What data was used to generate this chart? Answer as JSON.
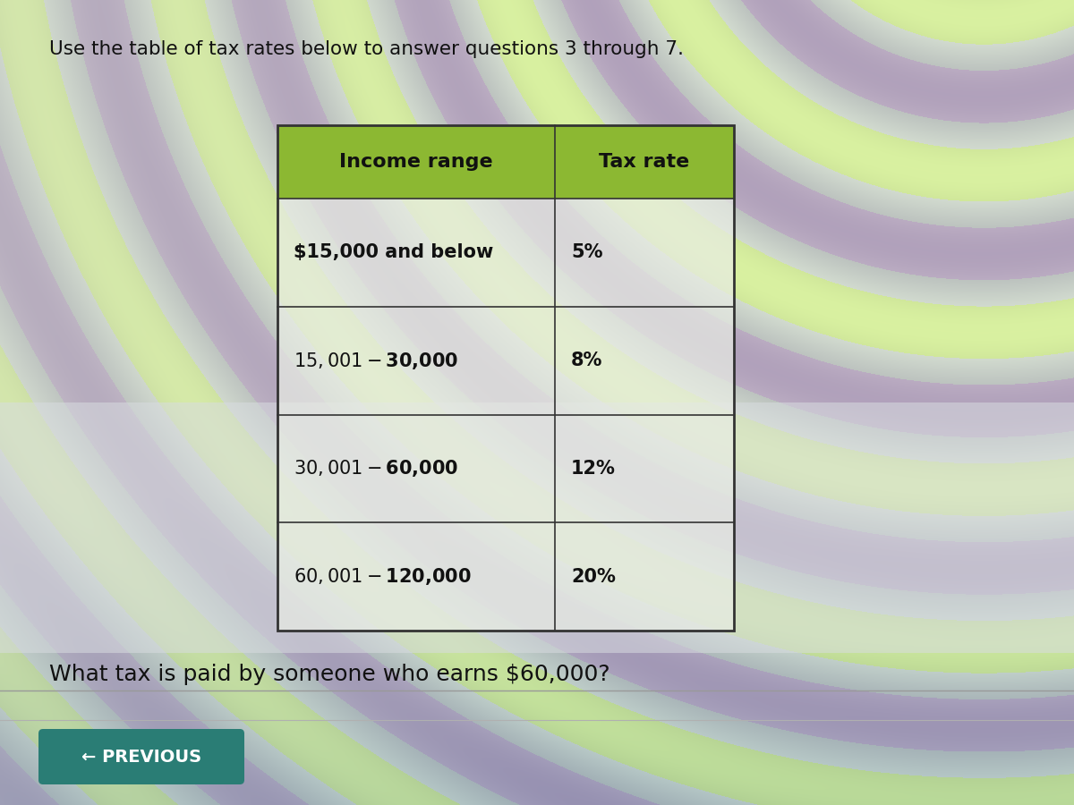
{
  "title": "Use the table of tax rates below to answer questions 3 through 7.",
  "title_fontsize": 15.5,
  "title_color": "#111111",
  "table_header": [
    "Income range",
    "Tax rate"
  ],
  "table_rows": [
    [
      "$15,000 and below",
      "5%"
    ],
    [
      "$15,001-$30,000",
      "8%"
    ],
    [
      "$30,001-$60,000",
      "12%"
    ],
    [
      "$60,001-$120,000",
      "20%"
    ]
  ],
  "header_bg": "#8cb832",
  "header_text_color": "#111111",
  "row_bg_left": "rgba_transparent",
  "row_text_color": "#111111",
  "table_border_color": "#333333",
  "question_text": "What tax is paid by someone who earns $60,000?",
  "question_fontsize": 18,
  "question_color": "#111111",
  "prev_button_text": "← PREVIOUS",
  "prev_button_bg": "#2a7d75",
  "prev_button_text_color": "#ffffff",
  "prev_button_fontsize": 14,
  "divider_color": "#999999",
  "bg_base": "#c8cfc8",
  "bg_light": "#dde5dd",
  "bg_stripe_green": "#a8c87a",
  "bg_stripe_purple": "#c8c0d8",
  "bg_stripe_white": "#e8eee8",
  "answer_area_bg": "#d8ddd8",
  "bottom_area_bg": "#c0c8c0"
}
